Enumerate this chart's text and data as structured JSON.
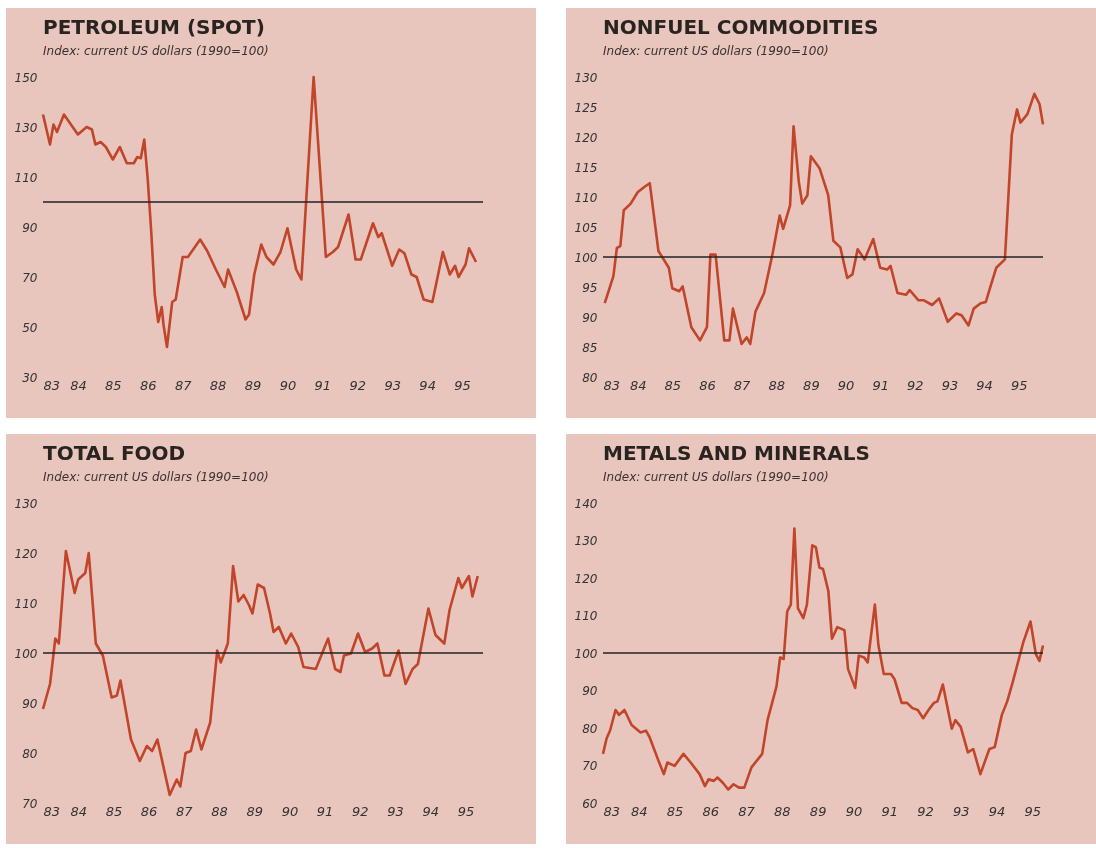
{
  "chart_data": [
    {
      "type": "line",
      "title": "PETROLEUM (SPOT)",
      "subtitle": "Index: current US dollars (1990=100)",
      "color": "#c0452a",
      "xlim": [
        83,
        95.6
      ],
      "xticks": [
        83,
        84,
        85,
        86,
        87,
        88,
        89,
        90,
        91,
        92,
        93,
        94,
        95
      ],
      "ylim": [
        30,
        150
      ],
      "yticks": [
        30,
        50,
        70,
        90,
        110,
        130,
        150
      ],
      "ref_lines": [
        {
          "axis": "y",
          "value": 100,
          "color": "#222222"
        }
      ],
      "x": [
        83.0,
        83.2,
        83.3,
        83.4,
        83.6,
        83.9,
        84.0,
        84.25,
        84.4,
        84.5,
        84.65,
        84.8,
        85.0,
        85.2,
        85.4,
        85.6,
        85.7,
        85.8,
        85.9,
        86.0,
        86.1,
        86.2,
        86.3,
        86.4,
        86.45,
        86.55,
        86.7,
        86.8,
        87.0,
        87.15,
        87.5,
        87.7,
        87.95,
        88.2,
        88.3,
        88.55,
        88.8,
        88.9,
        89.05,
        89.25,
        89.4,
        89.6,
        89.8,
        90.0,
        90.25,
        90.4,
        90.75,
        91.1,
        91.3,
        91.45,
        91.75,
        91.95,
        92.1,
        92.45,
        92.6,
        92.7,
        93.0,
        93.2,
        93.35,
        93.55,
        93.7,
        93.9,
        94.15,
        94.45,
        94.65,
        94.8,
        94.9,
        95.1,
        95.2,
        95.4
      ],
      "values": [
        135,
        123,
        131,
        128,
        135,
        129,
        127,
        130,
        129,
        123,
        124,
        122,
        117,
        122,
        115.5,
        115.5,
        118,
        117.5,
        125,
        109,
        88,
        63,
        52,
        58,
        51,
        42,
        60,
        61,
        78,
        78,
        85,
        80.5,
        73,
        66,
        73,
        64,
        53,
        55,
        71,
        83,
        78,
        75,
        80,
        89.5,
        73,
        69,
        150,
        78,
        80,
        82,
        95,
        77,
        77,
        91.5,
        86,
        87.5,
        74.5,
        81,
        79.5,
        71,
        70,
        61,
        60,
        80,
        71,
        74.5,
        70,
        75,
        81.5,
        76
      ]
    },
    {
      "type": "line",
      "title": "NONFUEL COMMODITIES",
      "subtitle": "Index: current US dollars (1990=100)",
      "color": "#c0452a",
      "xlim": [
        83,
        95.7
      ],
      "xticks": [
        83,
        84,
        85,
        86,
        87,
        88,
        89,
        90,
        91,
        92,
        93,
        94,
        95
      ],
      "ylim": [
        80,
        130
      ],
      "yticks": [
        80,
        85,
        90,
        95,
        100,
        105,
        110,
        115,
        120,
        125,
        130
      ],
      "ref_lines": [
        {
          "axis": "y",
          "value": 100,
          "color": "#222222"
        }
      ],
      "x": [
        83.05,
        83.2,
        83.3,
        83.4,
        83.5,
        83.6,
        83.8,
        84.0,
        84.2,
        84.35,
        84.6,
        84.9,
        85.0,
        85.2,
        85.3,
        85.55,
        85.8,
        86.0,
        86.1,
        86.25,
        86.5,
        86.65,
        86.75,
        87.0,
        87.15,
        87.25,
        87.4,
        87.65,
        87.9,
        88.1,
        88.2,
        88.4,
        88.5,
        88.65,
        88.75,
        88.9,
        89.0,
        89.25,
        89.5,
        89.65,
        89.85,
        90.05,
        90.2,
        90.35,
        90.55,
        90.8,
        91.0,
        91.2,
        91.3,
        91.5,
        91.75,
        91.85,
        92.1,
        92.25,
        92.5,
        92.7,
        92.95,
        93.2,
        93.35,
        93.55,
        93.7,
        93.9,
        94.05,
        94.2,
        94.35,
        94.6,
        94.8,
        94.95,
        95.05,
        95.25,
        95.45,
        95.6,
        95.7
      ],
      "values": [
        92.3,
        95,
        96.8,
        101.5,
        101.8,
        107.8,
        108.9,
        110.8,
        111.7,
        112.3,
        101,
        98.2,
        94.8,
        94.3,
        95.1,
        88.3,
        86.1,
        88.3,
        100.4,
        100.4,
        86.1,
        86.1,
        91.4,
        85.5,
        86.6,
        85.5,
        90.9,
        94,
        100.7,
        106.9,
        104.7,
        108.6,
        121.8,
        112.6,
        108.9,
        110.3,
        116.8,
        114.8,
        110.3,
        102.7,
        101.6,
        96.5,
        97.1,
        101.3,
        99.6,
        103,
        98.2,
        97.9,
        98.5,
        94,
        93.7,
        94.5,
        92.8,
        92.8,
        92,
        93.1,
        89.2,
        90.6,
        90.3,
        88.6,
        91.4,
        92.3,
        92.5,
        95.4,
        98.2,
        99.6,
        120.4,
        124.6,
        122.4,
        123.8,
        127.2,
        125.5,
        122.1
      ]
    },
    {
      "type": "line",
      "title": "TOTAL FOOD",
      "subtitle": "Index: current US dollars (1990=100)",
      "color": "#c0452a",
      "xlim": [
        83,
        95.5
      ],
      "xticks": [
        83,
        84,
        85,
        86,
        87,
        88,
        89,
        90,
        91,
        92,
        93,
        94,
        95
      ],
      "ylim": [
        70,
        130
      ],
      "yticks": [
        70,
        80,
        90,
        100,
        110,
        120,
        130
      ],
      "ref_lines": [
        {
          "axis": "y",
          "value": 100,
          "color": "#222222"
        }
      ],
      "x": [
        83.0,
        83.2,
        83.35,
        83.45,
        83.65,
        83.9,
        84.0,
        84.2,
        84.3,
        84.5,
        84.7,
        84.95,
        85.1,
        85.2,
        85.5,
        85.75,
        85.95,
        86.1,
        86.25,
        86.6,
        86.8,
        86.9,
        87.05,
        87.2,
        87.35,
        87.5,
        87.75,
        87.95,
        88.05,
        88.25,
        88.4,
        88.55,
        88.7,
        88.85,
        88.95,
        89.1,
        89.28,
        89.45,
        89.55,
        89.7,
        89.9,
        90.05,
        90.25,
        90.4,
        90.75,
        91.1,
        91.3,
        91.45,
        91.55,
        91.75,
        91.95,
        92.15,
        92.35,
        92.5,
        92.7,
        92.85,
        93.1,
        93.3,
        93.5,
        93.65,
        93.95,
        94.15,
        94.4,
        94.55,
        94.8,
        94.9,
        95.1,
        95.2,
        95.35
      ],
      "values": [
        88.8,
        93.8,
        102.9,
        101.9,
        120.4,
        112,
        114.7,
        116,
        120,
        101.9,
        99.5,
        91.1,
        91.5,
        94.5,
        82.7,
        78.4,
        81.4,
        80.4,
        82.7,
        71.6,
        74.7,
        73.3,
        80,
        80.4,
        84.7,
        80.7,
        86.1,
        100.5,
        98.1,
        101.9,
        117.4,
        110.3,
        111.6,
        109.6,
        107.9,
        113.7,
        113,
        107.9,
        104.2,
        105.2,
        101.9,
        103.9,
        101.2,
        97.2,
        96.8,
        102.9,
        96.8,
        96.2,
        99.5,
        99.9,
        103.9,
        100.2,
        100.9,
        101.9,
        95.5,
        95.5,
        100.5,
        93.8,
        96.8,
        97.8,
        108.9,
        103.6,
        101.9,
        108.6,
        115,
        113,
        115.4,
        111.3,
        115.4
      ]
    },
    {
      "type": "line",
      "title": "METALS AND MINERALS",
      "subtitle": "Index: current US dollars (1990=100)",
      "color": "#c0452a",
      "xlim": [
        83,
        95.3
      ],
      "xticks": [
        83,
        84,
        85,
        86,
        87,
        88,
        89,
        90,
        91,
        92,
        93,
        94,
        95
      ],
      "ylim": [
        60,
        140
      ],
      "yticks": [
        60,
        70,
        80,
        90,
        100,
        110,
        120,
        130,
        140
      ],
      "ref_lines": [
        {
          "axis": "y",
          "value": 100,
          "color": "#222222"
        }
      ],
      "x": [
        83.0,
        83.1,
        83.2,
        83.35,
        83.45,
        83.6,
        83.8,
        84.05,
        84.2,
        84.3,
        84.55,
        84.7,
        84.8,
        85.0,
        85.25,
        85.45,
        85.7,
        85.85,
        85.95,
        86.1,
        86.2,
        86.35,
        86.5,
        86.65,
        86.8,
        86.95,
        87.15,
        87.45,
        87.6,
        87.85,
        87.95,
        88.05,
        88.15,
        88.25,
        88.35,
        88.45,
        88.6,
        88.7,
        88.85,
        88.95,
        89.05,
        89.15,
        89.3,
        89.4,
        89.55,
        89.75,
        89.85,
        90.05,
        90.15,
        90.3,
        90.4,
        90.6,
        90.7,
        90.85,
        91.05,
        91.15,
        91.35,
        91.5,
        91.65,
        91.8,
        91.95,
        92.1,
        92.25,
        92.35,
        92.5,
        92.75,
        92.85,
        93.0,
        93.2,
        93.35,
        93.55,
        93.8,
        93.95,
        94.15,
        94.3,
        94.45,
        94.75,
        94.95,
        95.1,
        95.2,
        95.3
      ],
      "values": [
        73.1,
        77.2,
        79.4,
        84.8,
        83.5,
        84.8,
        80.8,
        78.8,
        79.3,
        77.6,
        71.3,
        67.7,
        70.8,
        69.9,
        73.1,
        70.8,
        67.7,
        64.5,
        66.3,
        65.9,
        66.8,
        65.4,
        63.6,
        65,
        64.1,
        64.1,
        69.5,
        73.1,
        82.1,
        91.1,
        98.8,
        98.4,
        111.1,
        112.9,
        133.2,
        111.9,
        109.3,
        112.9,
        128.7,
        128.2,
        122.8,
        122.4,
        116.5,
        103.8,
        106.9,
        106.1,
        95.7,
        90.7,
        99.3,
        98.8,
        97.5,
        112.9,
        102,
        94.4,
        94.4,
        93,
        86.7,
        86.7,
        85.3,
        84.8,
        82.6,
        84.8,
        86.7,
        87.1,
        91.6,
        79.8,
        82.1,
        80.3,
        73.5,
        74.4,
        67.7,
        74.4,
        74.9,
        83.5,
        87.1,
        92.1,
        102.9,
        108.4,
        99.7,
        97.9,
        102
      ]
    }
  ]
}
